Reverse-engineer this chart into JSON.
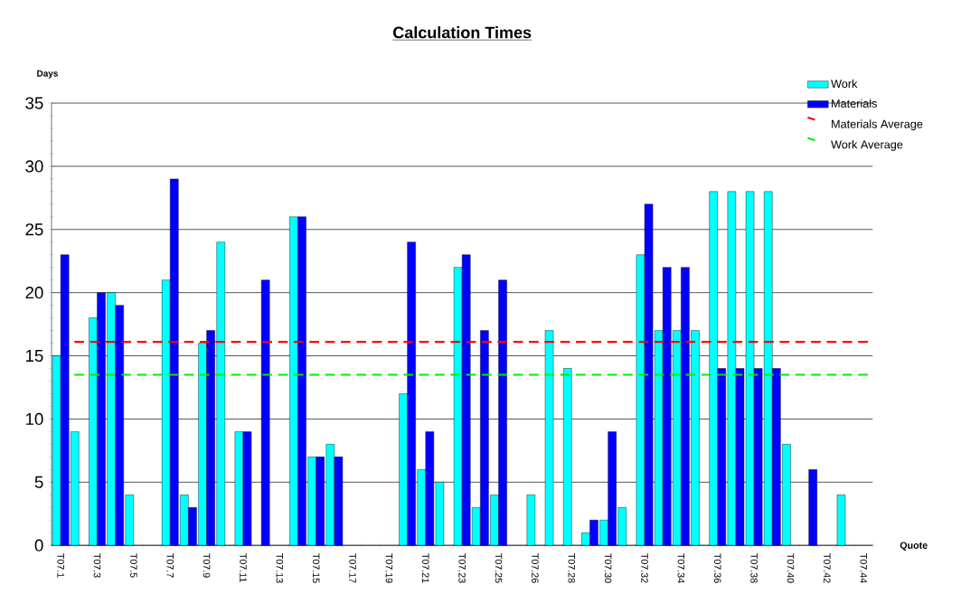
{
  "chart_data": {
    "type": "bar",
    "title": "Calculation Times",
    "xlabel": "Quote",
    "ylabel": "Days",
    "categories": [
      "T07.1",
      null,
      "T07.3",
      null,
      "T07.5",
      null,
      "T07.7",
      null,
      "T07.9",
      null,
      "T07.11",
      null,
      "T07.13",
      null,
      "T07.15",
      null,
      "T07.17",
      null,
      "T07.19",
      null,
      "T07.21",
      null,
      "T07.23",
      null,
      "T07.25",
      null,
      "T07.26",
      null,
      "T07.28",
      null,
      "T07.30",
      null,
      "T07.32",
      null,
      "T07.34",
      null,
      "T07.36",
      null,
      "T07.38",
      null,
      "T07.40",
      null,
      "T07.42",
      null,
      "T07.44"
    ],
    "series": [
      {
        "name": "Work",
        "color": "#00ffff",
        "values": [
          15,
          9,
          18,
          20,
          4,
          null,
          21,
          4,
          16,
          24,
          9,
          null,
          null,
          26,
          7,
          8,
          null,
          null,
          null,
          12,
          6,
          5,
          22,
          3,
          4,
          null,
          4,
          17,
          14,
          1,
          2,
          3,
          23,
          17,
          17,
          17,
          28,
          28,
          28,
          28,
          8,
          null,
          null,
          4,
          null
        ]
      },
      {
        "name": "Materials",
        "color": "#0000ff",
        "values": [
          23,
          null,
          20,
          19,
          null,
          null,
          29,
          3,
          17,
          null,
          9,
          21,
          null,
          26,
          7,
          7,
          null,
          null,
          null,
          24,
          9,
          null,
          23,
          17,
          21,
          null,
          null,
          null,
          null,
          2,
          9,
          null,
          27,
          22,
          22,
          null,
          14,
          14,
          14,
          14,
          null,
          6,
          null,
          null,
          null
        ]
      }
    ],
    "ref_lines": [
      {
        "axis": "y",
        "value": 16.1,
        "label": "Materials Average",
        "color": "#ff0000",
        "line_style": "dashed"
      },
      {
        "axis": "y",
        "value": 13.5,
        "label": "Work Average",
        "color": "#00ee00",
        "line_style": "dashed"
      }
    ],
    "ylim": [
      0,
      35
    ],
    "yticks": [
      0,
      5,
      10,
      15,
      20,
      25,
      30,
      35
    ],
    "grid": "y",
    "legend": "top right"
  }
}
